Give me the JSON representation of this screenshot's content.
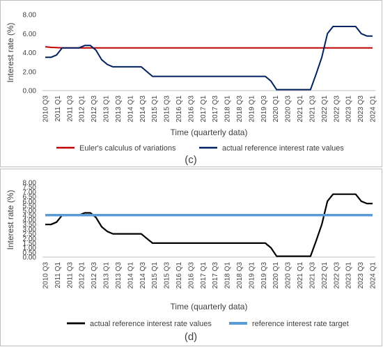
{
  "chart_data": [
    {
      "type": "line",
      "panel_label": "(c)",
      "xlabel": "Time (quarterly data)",
      "ylabel": "Interest rate (%)",
      "ylim": [
        0,
        8
      ],
      "ytick_labels": [
        "0.00",
        "2.00",
        "4.00",
        "6.00",
        "8.00"
      ],
      "ytick_values": [
        0,
        2,
        4,
        6,
        8
      ],
      "xtick_labels": [
        "2010 Q3",
        "2011 Q1",
        "2011 Q3",
        "2012 Q1",
        "2012 Q3",
        "2013 Q1",
        "2013 Q3",
        "2014 Q1",
        "2014 Q3",
        "2015 Q1",
        "2015 Q3",
        "2016 Q1",
        "2016 Q3",
        "2017 Q1",
        "2017 Q3",
        "2018 Q1",
        "2018 Q3",
        "2019 Q1",
        "2019 Q3",
        "2020 Q1",
        "2020 Q3",
        "2021 Q1",
        "2021 Q3",
        "2022 Q1",
        "2022 Q3",
        "2023 Q1",
        "2023 Q3",
        "2024 Q1"
      ],
      "grid": "none",
      "legend_position": "bottom",
      "series": [
        {
          "name": "Euler's calculus of variations",
          "color": "#c00000",
          "values": [
            4.62,
            4.55,
            4.52,
            4.5,
            4.5,
            4.5,
            4.5,
            4.5,
            4.5,
            4.5,
            4.5,
            4.5,
            4.5,
            4.5,
            4.5,
            4.5,
            4.5,
            4.5,
            4.5,
            4.5,
            4.5,
            4.5,
            4.5,
            4.5,
            4.5,
            4.5,
            4.5,
            4.5,
            4.5,
            4.5,
            4.5,
            4.5,
            4.5,
            4.5,
            4.5,
            4.5,
            4.5,
            4.5,
            4.5,
            4.5,
            4.5,
            4.5,
            4.5,
            4.5,
            4.5,
            4.5,
            4.5,
            4.5,
            4.5,
            4.5,
            4.5,
            4.5,
            4.5,
            4.5,
            4.5
          ]
        },
        {
          "name": "actual reference interest rate values",
          "color": "#002060",
          "values": [
            3.5,
            3.5,
            3.75,
            4.5,
            4.5,
            4.5,
            4.5,
            4.75,
            4.75,
            4.25,
            3.25,
            2.75,
            2.5,
            2.5,
            2.5,
            2.5,
            2.5,
            2.5,
            2.0,
            1.5,
            1.5,
            1.5,
            1.5,
            1.5,
            1.5,
            1.5,
            1.5,
            1.5,
            1.5,
            1.5,
            1.5,
            1.5,
            1.5,
            1.5,
            1.5,
            1.5,
            1.5,
            1.5,
            1.5,
            1.5,
            1.0,
            0.1,
            0.1,
            0.1,
            0.1,
            0.1,
            0.1,
            0.1,
            1.75,
            3.5,
            6.0,
            6.75,
            6.75,
            6.75,
            6.75,
            6.75,
            6.0,
            5.75,
            5.75
          ]
        }
      ]
    },
    {
      "type": "line",
      "panel_label": "(d)",
      "xlabel": "Time (quarterly data)",
      "ylabel": "Interest rate (%)",
      "ylim": [
        0,
        8
      ],
      "ytick_labels": [
        "0.00",
        "0.50",
        "1.00",
        "1.50",
        "2.00",
        "2.50",
        "3.00",
        "3.50",
        "4.00",
        "4.50",
        "5.00",
        "5.50",
        "6.00",
        "6.50",
        "7.00",
        "7.50",
        "8.00"
      ],
      "ytick_values": [
        0,
        0.5,
        1,
        1.5,
        2,
        2.5,
        3,
        3.5,
        4,
        4.5,
        5,
        5.5,
        6,
        6.5,
        7,
        7.5,
        8
      ],
      "xtick_labels": [
        "2010 Q3",
        "2011 Q1",
        "2011 Q3",
        "2012 Q1",
        "2012 Q3",
        "2013 Q1",
        "2013 Q3",
        "2014 Q1",
        "2014 Q3",
        "2015 Q1",
        "2015 Q3",
        "2016 Q1",
        "2016 Q3",
        "2017 Q1",
        "2017 Q3",
        "2018 Q1",
        "2018 Q3",
        "2019 Q1",
        "2019 Q3",
        "2020 Q1",
        "2020 Q3",
        "2021 Q1",
        "2021 Q3",
        "2022 Q1",
        "2022 Q3",
        "2023 Q1",
        "2023 Q3",
        "2024 Q1"
      ],
      "grid": "none",
      "legend_position": "bottom",
      "series": [
        {
          "name": "actual reference interest rate values",
          "color": "#000000",
          "values": [
            3.5,
            3.5,
            3.75,
            4.5,
            4.5,
            4.5,
            4.5,
            4.75,
            4.75,
            4.25,
            3.25,
            2.75,
            2.5,
            2.5,
            2.5,
            2.5,
            2.5,
            2.5,
            2.0,
            1.5,
            1.5,
            1.5,
            1.5,
            1.5,
            1.5,
            1.5,
            1.5,
            1.5,
            1.5,
            1.5,
            1.5,
            1.5,
            1.5,
            1.5,
            1.5,
            1.5,
            1.5,
            1.5,
            1.5,
            1.5,
            1.0,
            0.1,
            0.1,
            0.1,
            0.1,
            0.1,
            0.1,
            0.1,
            1.75,
            3.5,
            6.0,
            6.75,
            6.75,
            6.75,
            6.75,
            6.75,
            6.0,
            5.75,
            5.75
          ]
        },
        {
          "name": "reference interest rate target",
          "color": "#5b9bd5",
          "values": [
            4.5,
            4.5
          ]
        }
      ]
    }
  ]
}
